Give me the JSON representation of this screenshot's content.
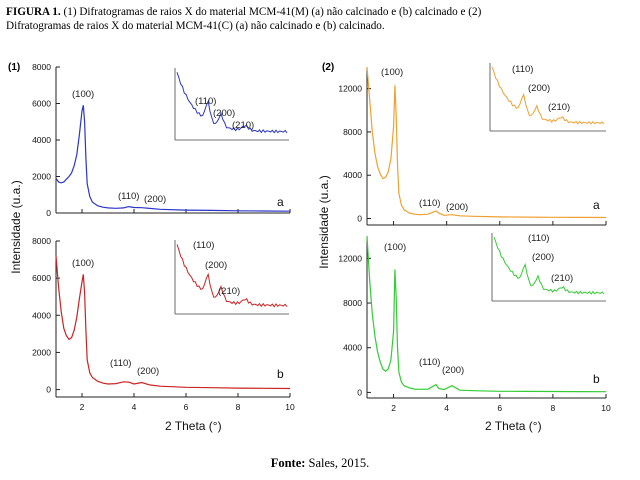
{
  "caption": {
    "label": "FIGURA 1.",
    "line1": "(1) Difratogramas  de raios X do material MCM-41(M) (a) não calcinado e (b) calcinado e (2)",
    "line2": "Difratogramas  de raios X do material MCM-41(C) (a) não calcinado e (b) calcinado."
  },
  "footer": {
    "label": "Fonte:",
    "text": " Sales, 2015."
  },
  "chart_data": [
    {
      "type": "line",
      "panel": "(1)",
      "ylabel": "Intensidade (u.a.)",
      "xlabel": "2 Theta (°)",
      "xlim": [
        1,
        10
      ],
      "xticks": [
        2,
        4,
        6,
        8,
        10
      ],
      "subplots": [
        {
          "label": "a",
          "color": "#2b35c9",
          "ylim": [
            0,
            8000
          ],
          "yticks": [
            0,
            2000,
            4000,
            6000,
            8000
          ],
          "x": [
            1.0,
            1.1,
            1.2,
            1.3,
            1.4,
            1.5,
            1.6,
            1.7,
            1.8,
            1.9,
            2.0,
            2.05,
            2.1,
            2.15,
            2.2,
            2.3,
            2.4,
            2.6,
            2.8,
            3.0,
            3.3,
            3.6,
            3.8,
            4.0,
            4.3,
            4.6,
            5.0,
            6.0,
            7.0,
            8.0,
            9.0,
            10.0
          ],
          "y": [
            1900,
            1700,
            1650,
            1700,
            1850,
            2000,
            2200,
            2600,
            3200,
            4300,
            5600,
            5900,
            5000,
            3000,
            1600,
            900,
            600,
            400,
            320,
            280,
            260,
            280,
            350,
            300,
            290,
            250,
            200,
            160,
            140,
            120,
            110,
            100
          ],
          "peaks": [
            "(100)",
            "(110)",
            "(200)"
          ],
          "inset": {
            "peaks": [
              "(110)",
              "(200)",
              "(210)"
            ]
          }
        },
        {
          "label": "b",
          "color": "#cc2222",
          "ylim": [
            -400,
            8000
          ],
          "yticks": [
            0,
            2000,
            4000,
            6000,
            8000
          ],
          "x": [
            1.0,
            1.1,
            1.2,
            1.3,
            1.4,
            1.5,
            1.6,
            1.7,
            1.8,
            1.9,
            2.0,
            2.05,
            2.1,
            2.15,
            2.2,
            2.3,
            2.4,
            2.6,
            2.8,
            3.0,
            3.3,
            3.6,
            3.8,
            4.0,
            4.3,
            4.6,
            5.0,
            6.0,
            7.0,
            8.0,
            9.0,
            10.0
          ],
          "y": [
            7200,
            5500,
            4200,
            3300,
            2900,
            2700,
            2800,
            3200,
            3900,
            4900,
            5800,
            6200,
            5200,
            3200,
            1600,
            900,
            650,
            450,
            350,
            300,
            320,
            420,
            400,
            300,
            380,
            250,
            180,
            120,
            100,
            80,
            70,
            60
          ],
          "peaks": [
            "(100)",
            "(110)",
            "(200)"
          ],
          "inset": {
            "peaks": [
              "(110)",
              "(200)",
              "(210)"
            ]
          }
        }
      ]
    },
    {
      "type": "line",
      "panel": "(2)",
      "ylabel": "Intensidade (u.a.)",
      "xlabel": "2 Theta (°)",
      "xlim": [
        1,
        10
      ],
      "xticks": [
        2,
        4,
        6,
        8,
        10
      ],
      "subplots": [
        {
          "label": "a",
          "color": "#f0a030",
          "ylim": [
            -600,
            14000
          ],
          "yticks": [
            0,
            4000,
            8000,
            12000
          ],
          "x": [
            1.0,
            1.1,
            1.2,
            1.3,
            1.4,
            1.5,
            1.6,
            1.7,
            1.8,
            1.9,
            2.0,
            2.05,
            2.1,
            2.15,
            2.2,
            2.3,
            2.4,
            2.6,
            2.8,
            3.0,
            3.3,
            3.6,
            3.7,
            3.9,
            4.2,
            4.5,
            5.0,
            6.0,
            7.0,
            8.0,
            9.0,
            10.0
          ],
          "y": [
            14000,
            11000,
            8000,
            6000,
            4800,
            4100,
            3700,
            3800,
            4300,
            5500,
            8500,
            12300,
            9500,
            5000,
            2300,
            1200,
            800,
            500,
            400,
            350,
            400,
            700,
            500,
            300,
            350,
            250,
            200,
            150,
            130,
            110,
            100,
            90
          ],
          "peaks": [
            "(100)",
            "(110)",
            "(200)"
          ],
          "inset": {
            "peaks": [
              "(110)",
              "(200)",
              "(210)"
            ]
          }
        },
        {
          "label": "b",
          "color": "#33cc33",
          "ylim": [
            -500,
            14000
          ],
          "yticks": [
            0,
            4000,
            8000,
            12000
          ],
          "x": [
            1.0,
            1.1,
            1.2,
            1.3,
            1.4,
            1.5,
            1.6,
            1.7,
            1.8,
            1.9,
            2.0,
            2.05,
            2.1,
            2.15,
            2.2,
            2.3,
            2.4,
            2.6,
            2.8,
            3.0,
            3.3,
            3.6,
            3.7,
            3.9,
            4.2,
            4.5,
            5.0,
            6.0,
            7.0,
            8.0,
            9.0,
            10.0
          ],
          "y": [
            14000,
            10000,
            7000,
            5000,
            3600,
            2700,
            2100,
            1900,
            2100,
            2900,
            5500,
            11000,
            8500,
            4000,
            1800,
            900,
            600,
            400,
            300,
            280,
            300,
            700,
            350,
            250,
            600,
            200,
            150,
            100,
            90,
            80,
            70,
            60
          ],
          "peaks": [
            "(100)",
            "(110)",
            "(200)"
          ],
          "inset": {
            "peaks": [
              "(110)",
              "(200)",
              "(210)"
            ]
          }
        }
      ]
    }
  ]
}
